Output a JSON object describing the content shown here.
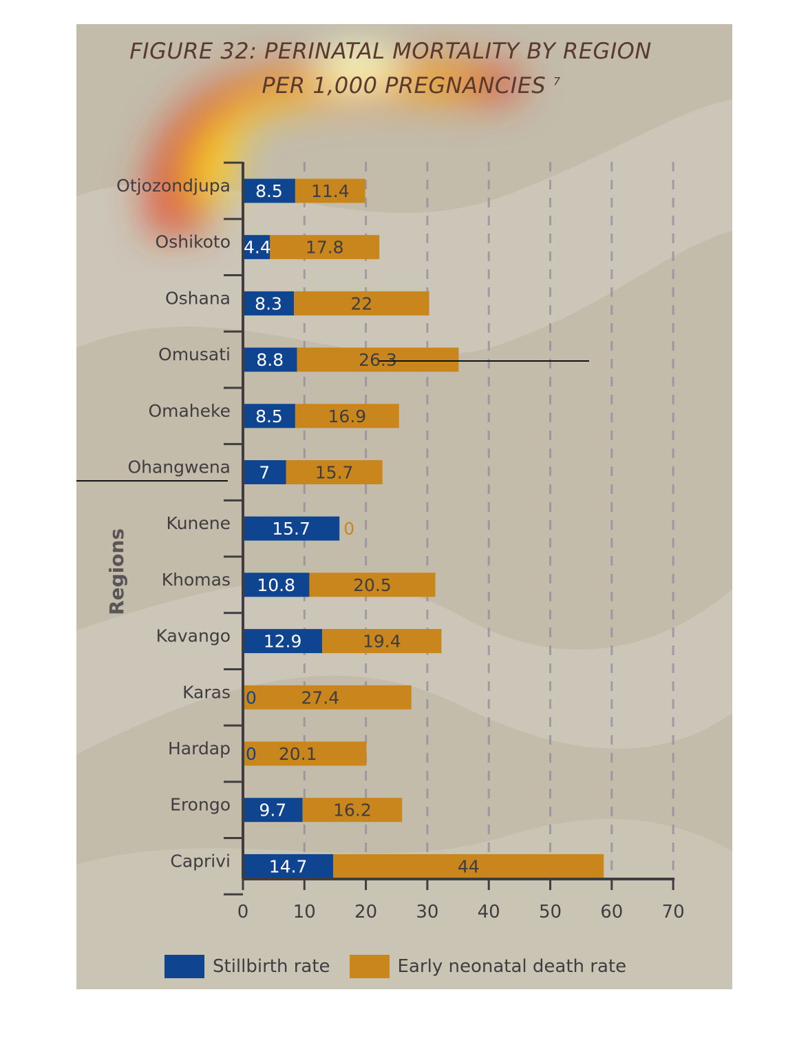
{
  "title": {
    "line1": "FIGURE 32: PERINATAL MORTALITY BY REGION",
    "line2": "PER 1,000 PREGNANCIES",
    "footnote": "7"
  },
  "colors": {
    "stillbirth": "#0f4590",
    "neonatal": "#c9861c",
    "axis": "#3f3d40",
    "grid": "#8f8d9a",
    "background": "#c3bcab"
  },
  "chart_data": {
    "type": "bar",
    "orientation": "horizontal",
    "stacked": true,
    "categories": [
      "Otjozondjupa",
      "Oshikoto",
      "Oshana",
      "Omusati",
      "Omaheke",
      "Ohangwena",
      "Kunene",
      "Khomas",
      "Kavango",
      "Karas",
      "Hardap",
      "Erongo",
      "Caprivi"
    ],
    "series": [
      {
        "name": "Stillbirth rate",
        "values": [
          8.5,
          4.4,
          8.3,
          8.8,
          8.5,
          7,
          15.7,
          10.8,
          12.9,
          0,
          0,
          9.7,
          14.7
        ]
      },
      {
        "name": "Early neonatal death rate",
        "values": [
          11.4,
          17.8,
          22,
          26.3,
          16.9,
          15.7,
          0,
          20.5,
          19.4,
          27.4,
          20.1,
          16.2,
          44
        ]
      }
    ],
    "ylabel": "Regions",
    "xlabel": "",
    "xlim": [
      0,
      70
    ],
    "xticks": [
      "0",
      "10",
      "20",
      "30",
      "40",
      "50",
      "60",
      "70"
    ],
    "grid": "vertical dashed",
    "legend": "bottom"
  }
}
